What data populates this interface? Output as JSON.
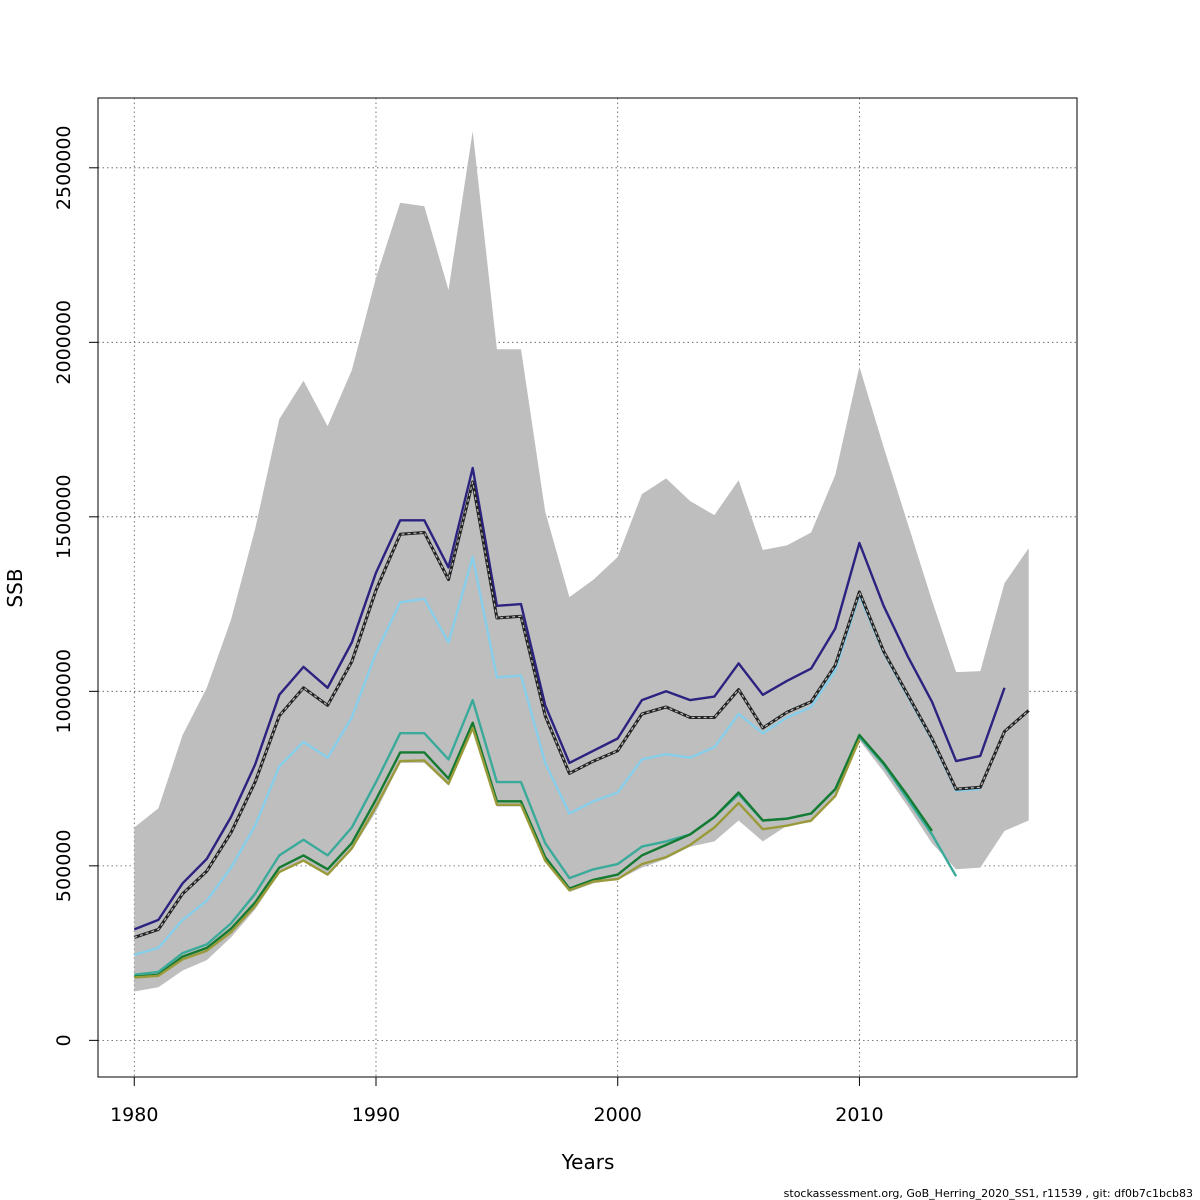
{
  "footer": "stockassessment.org, GoB_Herring_2020_SS1, r11539 , git: df0b7c1bcb83",
  "chart_data": {
    "type": "line",
    "title": "",
    "xlabel": "Years",
    "ylabel": "SSB",
    "xlim": [
      1978.5,
      2019
    ],
    "ylim": [
      -105000,
      2700000
    ],
    "xticks": [
      1980,
      1990,
      2000,
      2010
    ],
    "yticks": [
      0,
      500000,
      1000000,
      1500000,
      2000000,
      2500000
    ],
    "xtick_labels": [
      "1980",
      "1990",
      "2000",
      "2010"
    ],
    "ytick_labels": [
      "0",
      "500000",
      "1000000",
      "1500000",
      "2000000",
      "2500000"
    ],
    "grid": true,
    "legend": "none",
    "colors": {
      "band": "#bebebe",
      "base": "#222222",
      "peel1": "#2c2280",
      "peel2": "#87ceeb",
      "peel3": "#3aaa9a",
      "peel4": "#157a32",
      "peel5": "#9a9a3a",
      "peel6": "#3aaa9a"
    },
    "band": {
      "years": [
        1980,
        1981,
        1982,
        1983,
        1984,
        1985,
        1986,
        1987,
        1988,
        1989,
        1990,
        1991,
        1992,
        1993,
        1994,
        1995,
        1996,
        1997,
        1998,
        1999,
        2000,
        2001,
        2002,
        2003,
        2004,
        2005,
        2006,
        2007,
        2008,
        2009,
        2010,
        2011,
        2012,
        2013,
        2014,
        2015,
        2016,
        2017
      ],
      "upper": [
        610000,
        665000,
        875000,
        1010000,
        1205000,
        1465000,
        1780000,
        1890000,
        1760000,
        1920000,
        2185000,
        2400000,
        2390000,
        2150000,
        2605000,
        1980000,
        1980000,
        1515000,
        1270000,
        1320000,
        1385000,
        1565000,
        1610000,
        1545000,
        1505000,
        1605000,
        1405000,
        1418000,
        1455000,
        1620000,
        1930000,
        1700000,
        1480000,
        1260000,
        1055000,
        1058000,
        1310000,
        1410000
      ],
      "lower": [
        140000,
        152000,
        200000,
        230000,
        295000,
        375000,
        480000,
        515000,
        475000,
        545000,
        655000,
        795000,
        795000,
        730000,
        895000,
        670000,
        670000,
        515000,
        425000,
        450000,
        460000,
        495000,
        520000,
        555000,
        570000,
        630000,
        570000,
        615000,
        625000,
        700000,
        860000,
        770000,
        670000,
        565000,
        490000,
        495000,
        600000,
        630000
      ]
    },
    "series": [
      {
        "key": "base",
        "years": [
          1980,
          1981,
          1982,
          1983,
          1984,
          1985,
          1986,
          1987,
          1988,
          1989,
          1990,
          1991,
          1992,
          1993,
          1994,
          1995,
          1996,
          1997,
          1998,
          1999,
          2000,
          2001,
          2002,
          2003,
          2004,
          2005,
          2006,
          2007,
          2008,
          2009,
          2010,
          2011,
          2012,
          2013,
          2014,
          2015,
          2016,
          2017
        ],
        "values": [
          295000,
          318000,
          420000,
          485000,
          595000,
          740000,
          930000,
          1010000,
          960000,
          1085000,
          1290000,
          1450000,
          1455000,
          1320000,
          1600000,
          1210000,
          1215000,
          930000,
          765000,
          800000,
          830000,
          935000,
          955000,
          925000,
          925000,
          1005000,
          895000,
          940000,
          970000,
          1075000,
          1285000,
          1115000,
          990000,
          865000,
          720000,
          725000,
          885000,
          945000
        ]
      },
      {
        "key": "peel1",
        "years": [
          1980,
          1981,
          1982,
          1983,
          1984,
          1985,
          1986,
          1987,
          1988,
          1989,
          1990,
          1991,
          1992,
          1993,
          1994,
          1995,
          1996,
          1997,
          1998,
          1999,
          2000,
          2001,
          2002,
          2003,
          2004,
          2005,
          2006,
          2007,
          2008,
          2009,
          2010,
          2011,
          2012,
          2013,
          2014,
          2015,
          2016
        ],
        "values": [
          318000,
          345000,
          450000,
          520000,
          640000,
          790000,
          990000,
          1070000,
          1010000,
          1140000,
          1340000,
          1490000,
          1490000,
          1355000,
          1640000,
          1245000,
          1250000,
          960000,
          795000,
          830000,
          865000,
          975000,
          1000000,
          975000,
          985000,
          1080000,
          990000,
          1030000,
          1065000,
          1180000,
          1425000,
          1245000,
          1100000,
          970000,
          800000,
          815000,
          1010000
        ]
      },
      {
        "key": "peel2",
        "years": [
          1980,
          1981,
          1982,
          1983,
          1984,
          1985,
          1986,
          1987,
          1988,
          1989,
          1990,
          1991,
          1992,
          1993,
          1994,
          1995,
          1996,
          1997,
          1998,
          1999,
          2000,
          2001,
          2002,
          2003,
          2004,
          2005,
          2006,
          2007,
          2008,
          2009,
          2010,
          2011,
          2012,
          2013,
          2014,
          2015
        ],
        "values": [
          245000,
          265000,
          345000,
          400000,
          495000,
          615000,
          785000,
          855000,
          810000,
          925000,
          1110000,
          1255000,
          1265000,
          1140000,
          1385000,
          1040000,
          1045000,
          795000,
          650000,
          685000,
          710000,
          805000,
          820000,
          810000,
          840000,
          935000,
          880000,
          925000,
          955000,
          1060000,
          1275000,
          1110000,
          985000,
          860000,
          715000,
          720000
        ]
      },
      {
        "key": "peel3",
        "years": [
          1980,
          1981,
          1982,
          1983,
          1984,
          1985,
          1986,
          1987,
          1988,
          1989,
          1990,
          1991,
          1992,
          1993,
          1994,
          1995,
          1996,
          1997,
          1998,
          1999,
          2000,
          2001,
          2002,
          2003,
          2004,
          2005,
          2006,
          2007,
          2008,
          2009,
          2010,
          2011,
          2012,
          2013,
          2014
        ],
        "values": [
          188000,
          196000,
          250000,
          275000,
          335000,
          420000,
          530000,
          575000,
          530000,
          610000,
          740000,
          880000,
          880000,
          805000,
          975000,
          740000,
          740000,
          565000,
          465000,
          490000,
          505000,
          555000,
          570000,
          590000,
          640000,
          705000,
          630000,
          635000,
          650000,
          720000,
          870000,
          790000,
          690000,
          590000,
          470000
        ]
      },
      {
        "key": "peel4",
        "years": [
          1980,
          1981,
          1982,
          1983,
          1984,
          1985,
          1986,
          1987,
          1988,
          1989,
          1990,
          1991,
          1992,
          1993,
          1994,
          1995,
          1996,
          1997,
          1998,
          1999,
          2000,
          2001,
          2002,
          2003,
          2004,
          2005,
          2006,
          2007,
          2008,
          2009,
          2010,
          2011,
          2012,
          2013
        ],
        "values": [
          182000,
          188000,
          240000,
          265000,
          320000,
          395000,
          495000,
          530000,
          490000,
          565000,
          690000,
          825000,
          825000,
          750000,
          910000,
          685000,
          685000,
          525000,
          435000,
          460000,
          475000,
          530000,
          560000,
          590000,
          640000,
          710000,
          630000,
          635000,
          650000,
          720000,
          875000,
          795000,
          700000,
          600000
        ]
      },
      {
        "key": "peel5",
        "years": [
          1980,
          1981,
          1982,
          1983,
          1984,
          1985,
          1986,
          1987,
          1988,
          1989,
          1990,
          1991,
          1992,
          1993,
          1994,
          1995,
          1996,
          1997,
          1998,
          1999,
          2000,
          2001,
          2002,
          2003,
          2004,
          2005,
          2006,
          2007,
          2008,
          2009,
          2010
        ],
        "values": [
          180000,
          185000,
          232000,
          257000,
          310000,
          385000,
          482000,
          515000,
          475000,
          550000,
          670000,
          800000,
          802000,
          735000,
          895000,
          675000,
          675000,
          515000,
          430000,
          455000,
          462000,
          505000,
          525000,
          560000,
          610000,
          680000,
          605000,
          615000,
          630000,
          700000,
          862000
        ]
      }
    ]
  }
}
